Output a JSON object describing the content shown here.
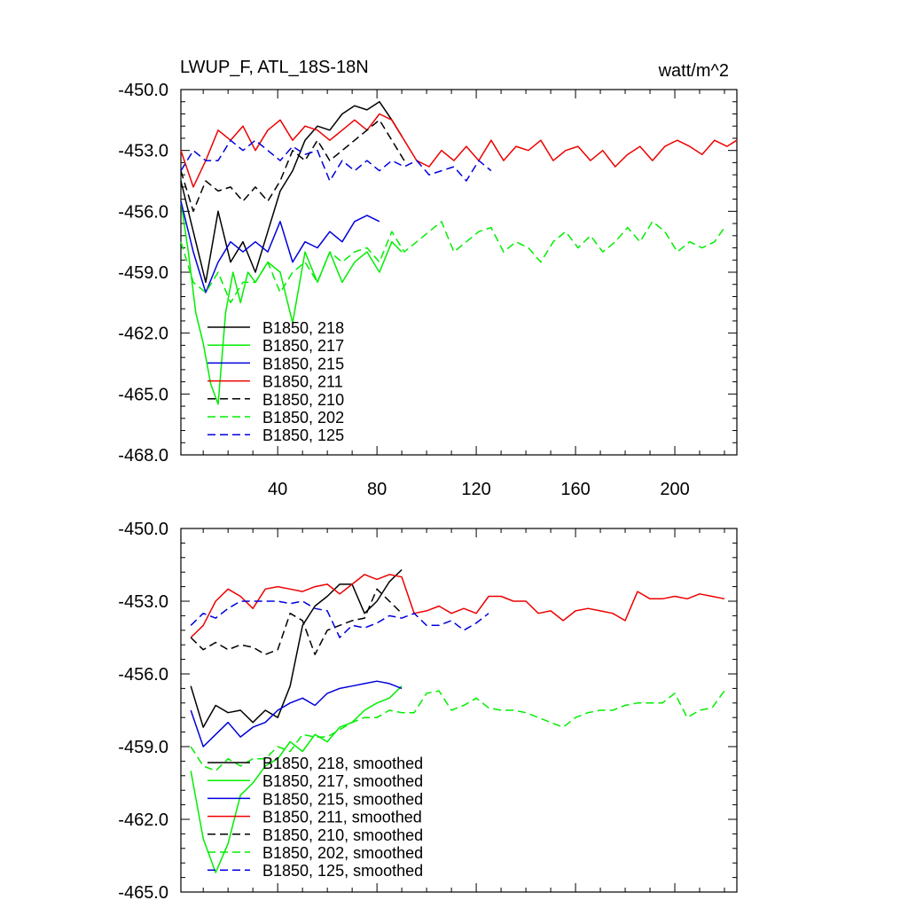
{
  "chart_data": [
    {
      "type": "line",
      "title": "LWUP_F, ATL_18S-18N",
      "units": "watt/m^2",
      "xlim": [
        1,
        225
      ],
      "ylim": [
        -468.0,
        -450.0
      ],
      "xticks": [
        40,
        80,
        120,
        160,
        200
      ],
      "yticks": [
        "-450.0",
        "-453.0",
        "-456.0",
        "-459.0",
        "-462.0",
        "-465.0",
        "-468.0"
      ],
      "series": [
        {
          "name": "B1850, 218",
          "color": "#000000",
          "dash": false,
          "x": [
            1,
            6,
            11,
            16,
            21,
            26,
            31,
            36,
            41,
            46,
            51,
            56,
            61,
            66,
            71,
            76,
            81,
            86,
            90
          ],
          "y": [
            -454.5,
            -457.0,
            -459.5,
            -456.0,
            -458.5,
            -457.5,
            -459.0,
            -457.0,
            -455.0,
            -454.0,
            -452.5,
            -451.8,
            -452.0,
            -451.2,
            -450.8,
            -451.0,
            -450.6,
            -451.5,
            -452.3
          ]
        },
        {
          "name": "B1850, 217",
          "color": "#00ee00",
          "dash": false,
          "x": [
            1,
            4,
            7,
            10,
            13,
            16,
            19,
            22,
            25,
            28,
            31,
            36,
            41,
            46,
            51,
            56,
            61,
            66,
            71,
            76,
            81,
            86,
            90
          ],
          "y": [
            -455.5,
            -458.0,
            -461.0,
            -462.5,
            -464.5,
            -465.5,
            -461.0,
            -459.0,
            -460.5,
            -459.0,
            -459.5,
            -458.5,
            -459.0,
            -461.5,
            -458.0,
            -459.5,
            -458.0,
            -459.5,
            -458.5,
            -458.0,
            -459.0,
            -457.5,
            -458.0
          ]
        },
        {
          "name": "B1850, 215",
          "color": "#0000dd",
          "dash": false,
          "x": [
            1,
            6,
            11,
            16,
            21,
            26,
            31,
            36,
            41,
            46,
            51,
            56,
            61,
            66,
            71,
            76,
            81
          ],
          "y": [
            -455.5,
            -458.0,
            -460.0,
            -458.5,
            -457.5,
            -458.0,
            -457.5,
            -458.0,
            -456.5,
            -458.5,
            -457.5,
            -457.8,
            -457.0,
            -457.5,
            -456.5,
            -456.2,
            -456.5
          ]
        },
        {
          "name": "B1850, 211",
          "color": "#ee0000",
          "dash": false,
          "x": [
            1,
            6,
            11,
            16,
            21,
            26,
            31,
            36,
            41,
            46,
            51,
            56,
            61,
            66,
            71,
            76,
            81,
            86,
            91,
            96,
            101,
            106,
            111,
            116,
            121,
            126,
            131,
            136,
            141,
            146,
            151,
            156,
            161,
            166,
            171,
            176,
            181,
            186,
            191,
            196,
            201,
            206,
            211,
            216,
            221,
            225
          ],
          "y": [
            -453.0,
            -454.8,
            -453.5,
            -452.0,
            -452.5,
            -451.8,
            -453.0,
            -452.0,
            -451.5,
            -452.5,
            -451.8,
            -452.0,
            -452.5,
            -452.0,
            -451.5,
            -452.0,
            -451.2,
            -451.5,
            -452.5,
            -453.5,
            -453.8,
            -453.0,
            -453.5,
            -452.8,
            -453.5,
            -452.5,
            -453.5,
            -452.8,
            -453.0,
            -452.5,
            -453.5,
            -453.0,
            -452.8,
            -453.5,
            -453.0,
            -453.8,
            -453.2,
            -452.8,
            -453.5,
            -452.8,
            -452.5,
            -452.8,
            -453.2,
            -452.5,
            -452.8,
            -452.5
          ]
        },
        {
          "name": "B1850, 210",
          "color": "#000000",
          "dash": true,
          "x": [
            1,
            6,
            11,
            16,
            21,
            26,
            31,
            36,
            41,
            46,
            51,
            56,
            61,
            66,
            71,
            76,
            81,
            86,
            91
          ],
          "y": [
            -454.0,
            -456.0,
            -454.5,
            -455.0,
            -454.8,
            -455.5,
            -454.8,
            -455.5,
            -454.5,
            -453.0,
            -453.5,
            -452.5,
            -453.5,
            -453.0,
            -452.5,
            -452.0,
            -451.5,
            -452.5,
            -453.5
          ]
        },
        {
          "name": "B1850, 202",
          "color": "#00ee00",
          "dash": true,
          "x": [
            1,
            6,
            11,
            16,
            21,
            26,
            31,
            36,
            41,
            46,
            51,
            56,
            61,
            66,
            71,
            76,
            81,
            86,
            91,
            96,
            101,
            106,
            111,
            116,
            121,
            126,
            131,
            136,
            141,
            146,
            151,
            156,
            161,
            166,
            171,
            176,
            181,
            186,
            191,
            196,
            201,
            206,
            211,
            216,
            220
          ],
          "y": [
            -457.5,
            -459.5,
            -460.0,
            -459.0,
            -460.5,
            -459.5,
            -459.5,
            -458.5,
            -460.0,
            -459.0,
            -458.5,
            -459.5,
            -458.0,
            -458.5,
            -458.0,
            -457.8,
            -458.5,
            -457.0,
            -458.0,
            -457.5,
            -457.0,
            -456.5,
            -458.0,
            -457.5,
            -457.0,
            -456.8,
            -458.0,
            -457.5,
            -457.8,
            -458.5,
            -457.5,
            -457.0,
            -457.8,
            -457.2,
            -458.0,
            -457.5,
            -456.8,
            -457.5,
            -456.5,
            -457.0,
            -458.0,
            -457.5,
            -457.8,
            -457.5,
            -456.8
          ]
        },
        {
          "name": "B1850, 125",
          "color": "#0000dd",
          "dash": true,
          "x": [
            1,
            6,
            11,
            16,
            21,
            26,
            31,
            36,
            41,
            46,
            51,
            56,
            61,
            66,
            71,
            76,
            81,
            86,
            91,
            96,
            101,
            106,
            111,
            116,
            121,
            126
          ],
          "y": [
            -454.0,
            -453.0,
            -453.5,
            -453.5,
            -452.5,
            -453.0,
            -452.5,
            -453.0,
            -453.5,
            -452.8,
            -453.2,
            -453.0,
            -454.5,
            -453.5,
            -454.0,
            -453.5,
            -454.0,
            -453.5,
            -453.8,
            -453.5,
            -454.2,
            -454.0,
            -453.8,
            -454.5,
            -453.5,
            -454.0
          ]
        }
      ]
    },
    {
      "type": "line",
      "title": "",
      "xlim": [
        1,
        225
      ],
      "ylim": [
        -465.0,
        -450.0
      ],
      "yticks": [
        "-450.0",
        "-453.0",
        "-456.0",
        "-459.0",
        "-462.0",
        "-465.0"
      ],
      "series": [
        {
          "name": "B1850, 218, smoothed",
          "color": "#000000",
          "dash": false,
          "x": [
            5,
            10,
            15,
            20,
            25,
            30,
            35,
            40,
            45,
            50,
            55,
            60,
            65,
            70,
            75,
            80,
            85,
            90
          ],
          "y": [
            -456.5,
            -458.2,
            -457.3,
            -457.6,
            -457.5,
            -458.0,
            -457.5,
            -457.8,
            -456.5,
            -454.0,
            -453.2,
            -452.8,
            -452.3,
            -452.3,
            -453.5,
            -453.0,
            -452.2,
            -451.7
          ]
        },
        {
          "name": "B1850, 217, smoothed",
          "color": "#00ee00",
          "dash": false,
          "x": [
            5,
            10,
            15,
            20,
            25,
            30,
            35,
            40,
            45,
            50,
            55,
            60,
            65,
            70,
            75,
            80,
            85,
            90
          ],
          "y": [
            -460.0,
            -462.8,
            -464.2,
            -463.0,
            -461.0,
            -460.5,
            -459.8,
            -459.5,
            -458.8,
            -459.2,
            -458.5,
            -458.8,
            -458.2,
            -458.0,
            -457.5,
            -457.2,
            -457.0,
            -456.5
          ]
        },
        {
          "name": "B1850, 215, smoothed",
          "color": "#0000dd",
          "dash": false,
          "x": [
            5,
            10,
            15,
            20,
            25,
            30,
            35,
            40,
            45,
            50,
            55,
            60,
            65,
            70,
            75,
            80,
            85,
            90
          ],
          "y": [
            -457.5,
            -459.0,
            -458.5,
            -458.0,
            -458.6,
            -458.2,
            -458.0,
            -457.5,
            -457.2,
            -457.0,
            -457.3,
            -456.8,
            -456.6,
            -456.5,
            -456.4,
            -456.3,
            -456.4,
            -456.6
          ]
        },
        {
          "name": "B1850, 211, smoothed",
          "color": "#ee0000",
          "dash": false,
          "x": [
            5,
            10,
            15,
            20,
            25,
            30,
            35,
            40,
            45,
            50,
            55,
            60,
            65,
            70,
            75,
            80,
            85,
            90,
            95,
            100,
            105,
            110,
            115,
            120,
            125,
            130,
            135,
            140,
            145,
            150,
            155,
            160,
            165,
            170,
            175,
            180,
            185,
            190,
            195,
            200,
            205,
            210,
            215,
            220
          ],
          "y": [
            -454.5,
            -454.0,
            -453.0,
            -452.5,
            -452.8,
            -453.3,
            -452.5,
            -452.4,
            -452.5,
            -452.6,
            -452.4,
            -452.3,
            -452.7,
            -452.3,
            -451.9,
            -452.1,
            -451.9,
            -452.0,
            -453.5,
            -453.4,
            -453.2,
            -453.5,
            -453.3,
            -453.5,
            -452.8,
            -452.8,
            -453.0,
            -453.0,
            -453.5,
            -453.4,
            -453.8,
            -453.4,
            -453.3,
            -453.4,
            -453.5,
            -453.8,
            -452.6,
            -452.9,
            -452.9,
            -452.8,
            -452.9,
            -452.7,
            -452.8,
            -452.9
          ]
        },
        {
          "name": "B1850, 210, smoothed",
          "color": "#000000",
          "dash": true,
          "x": [
            5,
            10,
            15,
            20,
            25,
            30,
            35,
            40,
            45,
            50,
            55,
            60,
            65,
            70,
            75,
            80,
            85,
            90
          ],
          "y": [
            -454.5,
            -455.0,
            -454.7,
            -455.0,
            -454.8,
            -454.9,
            -455.2,
            -455.0,
            -453.5,
            -453.8,
            -455.2,
            -454.2,
            -454.0,
            -453.8,
            -453.7,
            -452.5,
            -453.0,
            -453.5
          ]
        },
        {
          "name": "B1850, 202, smoothed",
          "color": "#00ee00",
          "dash": true,
          "x": [
            5,
            10,
            15,
            20,
            25,
            30,
            35,
            40,
            45,
            50,
            55,
            60,
            65,
            70,
            75,
            80,
            85,
            90,
            95,
            100,
            105,
            110,
            115,
            120,
            125,
            130,
            135,
            140,
            145,
            150,
            155,
            160,
            165,
            170,
            175,
            180,
            185,
            190,
            195,
            200,
            205,
            210,
            215,
            220
          ],
          "y": [
            -459.0,
            -459.8,
            -460.0,
            -459.5,
            -459.8,
            -459.5,
            -459.5,
            -459.0,
            -459.2,
            -458.5,
            -458.6,
            -458.6,
            -458.3,
            -458.0,
            -457.8,
            -457.8,
            -457.5,
            -457.6,
            -457.6,
            -456.8,
            -456.7,
            -457.5,
            -457.3,
            -457.0,
            -457.4,
            -457.5,
            -457.5,
            -457.6,
            -457.8,
            -458.0,
            -458.2,
            -457.8,
            -457.6,
            -457.5,
            -457.5,
            -457.3,
            -457.2,
            -457.2,
            -457.2,
            -456.8,
            -457.8,
            -457.5,
            -457.4,
            -456.7
          ]
        },
        {
          "name": "B1850, 125, smoothed",
          "color": "#0000dd",
          "dash": true,
          "x": [
            5,
            10,
            15,
            20,
            25,
            30,
            35,
            40,
            45,
            50,
            55,
            60,
            65,
            70,
            75,
            80,
            85,
            90,
            95,
            100,
            105,
            110,
            115,
            120,
            125
          ],
          "y": [
            -454.0,
            -453.5,
            -453.7,
            -453.3,
            -453.0,
            -453.0,
            -453.0,
            -453.0,
            -453.1,
            -453.0,
            -453.3,
            -453.4,
            -454.5,
            -454.0,
            -454.1,
            -453.9,
            -453.6,
            -453.7,
            -453.5,
            -454.0,
            -454.0,
            -453.8,
            -454.2,
            -453.9,
            -453.5
          ]
        }
      ]
    }
  ]
}
